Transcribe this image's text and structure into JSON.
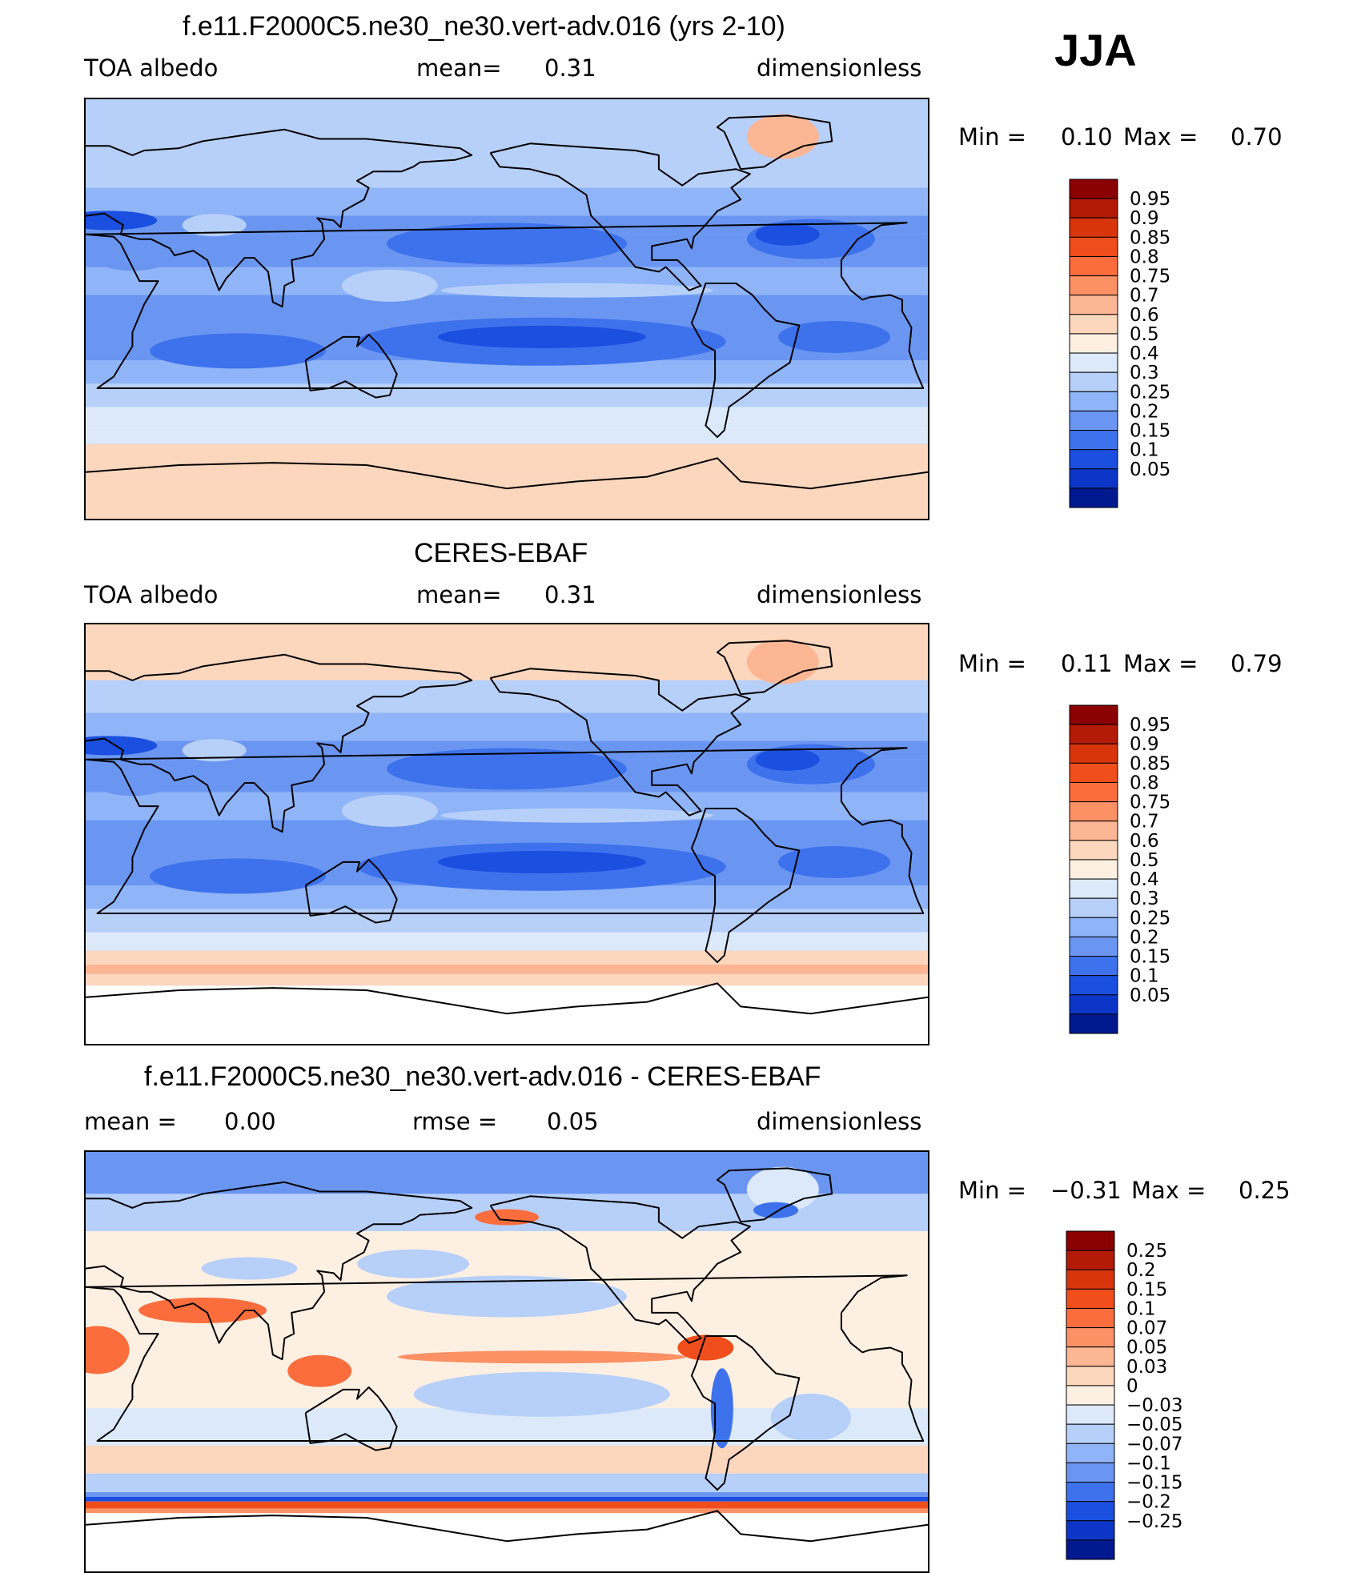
{
  "season": "JJA",
  "units": "dimensionless",
  "panels": [
    {
      "id": "model",
      "title": "f.e11.F2000C5.ne30_ne30.vert-adv.016 (yrs 2-10)",
      "left_label": "TOA albedo",
      "stat1_label": "mean=",
      "stat1_value": "0.31",
      "stat2_label": "",
      "stat2_value": "",
      "right_label": "dimensionless",
      "min_label": "Min =",
      "min_value": "0.10",
      "max_label": "Max =",
      "max_value": "0.70"
    },
    {
      "id": "obs",
      "title": "CERES-EBAF",
      "left_label": "TOA albedo",
      "stat1_label": "mean=",
      "stat1_value": "0.31",
      "stat2_label": "",
      "stat2_value": "",
      "right_label": "dimensionless",
      "min_label": "Min =",
      "min_value": "0.11",
      "max_label": "Max =",
      "max_value": "0.79"
    },
    {
      "id": "diff",
      "title": "f.e11.F2000C5.ne30_ne30.vert-adv.016 - CERES-EBAF",
      "left_label": "mean =",
      "left_value": "0.00",
      "stat1_label": "rmse =",
      "stat1_value": "0.05",
      "right_label": "dimensionless",
      "min_label": "Min =",
      "min_value": "−0.31",
      "max_label": "Max =",
      "max_value": "0.25"
    }
  ],
  "chart_data": [
    {
      "type": "heatmap",
      "title": "f.e11.F2000C5.ne30_ne30.vert-adv.016 (yrs 2-10)",
      "field": "TOA albedo",
      "mean": 0.31,
      "min": 0.1,
      "max": 0.7,
      "colorbar_levels": [
        "0.95",
        "0.9",
        "0.85",
        "0.8",
        "0.75",
        "0.7",
        "0.6",
        "0.5",
        "0.4",
        "0.3",
        "0.25",
        "0.2",
        "0.15",
        "0.1",
        "0.05"
      ],
      "colorbar_colors": [
        "#8b0000",
        "#b41a08",
        "#d8350c",
        "#f04e1c",
        "#fb6d3c",
        "#fc9165",
        "#fdb694",
        "#fdd7bd",
        "#fdf0e2",
        "#dbe9fb",
        "#b7d0fa",
        "#8fb4f8",
        "#6a96f2",
        "#3e72ec",
        "#1a4fe0",
        "#0b36c8",
        "#00198f"
      ],
      "legend": "right",
      "grid": false
    },
    {
      "type": "heatmap",
      "title": "CERES-EBAF",
      "field": "TOA albedo",
      "mean": 0.31,
      "min": 0.11,
      "max": 0.79,
      "colorbar_levels": [
        "0.95",
        "0.9",
        "0.85",
        "0.8",
        "0.75",
        "0.7",
        "0.6",
        "0.5",
        "0.4",
        "0.3",
        "0.25",
        "0.2",
        "0.15",
        "0.1",
        "0.05"
      ],
      "colorbar_colors": [
        "#8b0000",
        "#b41a08",
        "#d8350c",
        "#f04e1c",
        "#fb6d3c",
        "#fc9165",
        "#fdb694",
        "#fdd7bd",
        "#fdf0e2",
        "#dbe9fb",
        "#b7d0fa",
        "#8fb4f8",
        "#6a96f2",
        "#3e72ec",
        "#1a4fe0",
        "#0b36c8",
        "#00198f"
      ],
      "legend": "right",
      "grid": false
    },
    {
      "type": "heatmap",
      "title": "f.e11.F2000C5.ne30_ne30.vert-adv.016 - CERES-EBAF",
      "mean": 0.0,
      "rmse": 0.05,
      "min": -0.31,
      "max": 0.25,
      "colorbar_levels": [
        "0.25",
        "0.2",
        "0.15",
        "0.1",
        "0.07",
        "0.05",
        "0.03",
        "0",
        "−0.03",
        "−0.05",
        "−0.07",
        "−0.1",
        "−0.15",
        "−0.2",
        "−0.25"
      ],
      "colorbar_colors": [
        "#8b0000",
        "#b41a08",
        "#d8350c",
        "#f04e1c",
        "#fb6d3c",
        "#fc9165",
        "#fdb694",
        "#fdd7bd",
        "#fdf0e2",
        "#dbe9fb",
        "#b7d0fa",
        "#8fb4f8",
        "#6a96f2",
        "#3e72ec",
        "#1a4fe0",
        "#0b36c8",
        "#00198f"
      ],
      "legend": "right",
      "grid": false
    }
  ]
}
